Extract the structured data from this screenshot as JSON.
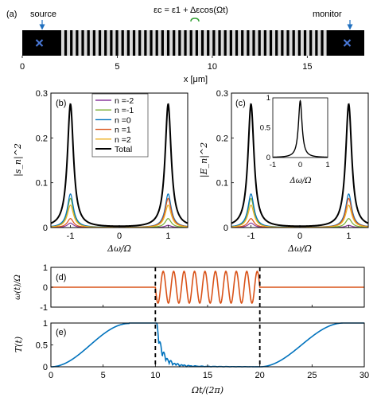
{
  "panel_a": {
    "label": "(a)",
    "source_label": "source",
    "monitor_label": "monitor",
    "equation": "εc = ε1 + Δεcos(Ωt)",
    "xlabel": "x [μm]",
    "xticks": [
      "0",
      "5",
      "10",
      "15"
    ],
    "xrange": [
      0,
      18
    ],
    "grating_start": 2.05,
    "grating_end": 15.9,
    "grating_period": 0.3,
    "source_x": 0.9,
    "monitor_x": 17.1
  },
  "chart_data": [
    {
      "id": "b",
      "type": "line",
      "label": "(b)",
      "ylabel": "|s_n|^2",
      "xlabel": "Δω/Ω",
      "xlim": [
        -1.4,
        1.4
      ],
      "ylim": [
        0,
        0.3
      ],
      "xticks": [
        "-1",
        "0",
        "1"
      ],
      "yticks": [
        "0",
        "0.1",
        "0.2",
        "0.3"
      ],
      "legend_position": "top-center",
      "series": [
        {
          "name": "n =-2",
          "color": "#8b3c9e",
          "peak_left": 0.01,
          "peak_right": 0.005
        },
        {
          "name": "n =-1",
          "color": "#77ac30",
          "peak_left": 0.065,
          "peak_right": 0.02
        },
        {
          "name": "n =0",
          "color": "#0072bd",
          "peak_left": 0.075,
          "peak_right": 0.075
        },
        {
          "name": "n =1",
          "color": "#d95319",
          "peak_left": 0.02,
          "peak_right": 0.065
        },
        {
          "name": "n =2",
          "color": "#edb120",
          "peak_left": 0.05,
          "peak_right": 0.05
        },
        {
          "name": "Total",
          "color": "#000000",
          "peak_left": 0.275,
          "peak_right": 0.275
        }
      ]
    },
    {
      "id": "c",
      "type": "line",
      "label": "(c)",
      "ylabel": "|E_n|^2",
      "xlabel": "Δω/Ω",
      "xlim": [
        -1.4,
        1.4
      ],
      "ylim": [
        0,
        0.3
      ],
      "xticks": [
        "-1",
        "0",
        "1"
      ],
      "yticks": [
        "0",
        "0.1",
        "0.2",
        "0.3"
      ],
      "inset": {
        "xlabel": "Δω/Ω",
        "xlim": [
          -1,
          1
        ],
        "ylim": [
          0,
          1
        ],
        "xticks": [
          "-1",
          "0",
          "1"
        ],
        "yticks": [
          "0",
          "0.5",
          "1"
        ],
        "peak": 0.95
      },
      "series": [
        {
          "name": "n =-2",
          "color": "#8b3c9e",
          "peak_left": 0.01,
          "peak_right": 0.005
        },
        {
          "name": "n =-1",
          "color": "#77ac30",
          "peak_left": 0.065,
          "peak_right": 0.02
        },
        {
          "name": "n =0",
          "color": "#0072bd",
          "peak_left": 0.075,
          "peak_right": 0.075
        },
        {
          "name": "n =1",
          "color": "#d95319",
          "peak_left": 0.02,
          "peak_right": 0.065
        },
        {
          "name": "n =2",
          "color": "#edb120",
          "peak_left": 0.05,
          "peak_right": 0.05
        },
        {
          "name": "Total",
          "color": "#000000",
          "peak_left": 0.275,
          "peak_right": 0.275
        }
      ]
    },
    {
      "id": "d",
      "type": "line",
      "label": "(d)",
      "ylabel": "ω(t)/Ω",
      "ylim": [
        -1,
        1
      ],
      "yticks": [
        "-1",
        "0",
        "1"
      ],
      "xlim": [
        0,
        30
      ],
      "modulation_window": [
        10,
        20
      ],
      "oscillation_amplitude": 0.8,
      "oscillation_cycles": 10,
      "color": "#d95319"
    },
    {
      "id": "e",
      "type": "line",
      "label": "(e)",
      "ylabel": "T(t)",
      "xlabel": "Ωt/(2π)",
      "xlim": [
        0,
        30
      ],
      "ylim": [
        0,
        1
      ],
      "xticks": [
        "0",
        "5",
        "10",
        "15",
        "20",
        "25",
        "30"
      ],
      "yticks": [
        "0",
        "0.5",
        "1"
      ],
      "markers_at": [
        10,
        20
      ],
      "color": "#0072bd"
    }
  ]
}
